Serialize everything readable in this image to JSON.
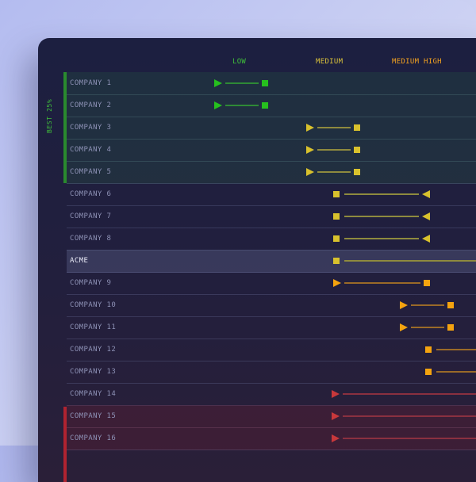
{
  "columns": {
    "low": "LOW",
    "medium": "MEDIUM",
    "medium_high": "MEDIUM HIGH"
  },
  "group_label": "BEST 25%",
  "colors": {
    "green": "#26c01e",
    "yellow": "#d8c12d",
    "orange": "#f4a30f",
    "red": "#c8383b",
    "best_bar": "#2a8a2e",
    "worst_bar": "#b02330"
  },
  "rows": [
    {
      "label": "COMPANY 1",
      "group": "best",
      "color": "green"
    },
    {
      "label": "COMPANY 2",
      "group": "best",
      "color": "green"
    },
    {
      "label": "COMPANY 3",
      "group": "best",
      "color": "yellow"
    },
    {
      "label": "COMPANY 4",
      "group": "best",
      "color": "yellow"
    },
    {
      "label": "COMPANY 5",
      "group": "best",
      "color": "yellow"
    },
    {
      "label": "COMPANY 6",
      "group": "",
      "color": "yellow"
    },
    {
      "label": "COMPANY 7",
      "group": "",
      "color": "yellow"
    },
    {
      "label": "COMPANY 8",
      "group": "",
      "color": "yellow"
    },
    {
      "label": "ACME",
      "group": "acme",
      "color": "yellow"
    },
    {
      "label": "COMPANY 9",
      "group": "",
      "color": "orange"
    },
    {
      "label": "COMPANY 10",
      "group": "",
      "color": "orange"
    },
    {
      "label": "COMPANY 11",
      "group": "",
      "color": "orange"
    },
    {
      "label": "COMPANY 12",
      "group": "",
      "color": "orange"
    },
    {
      "label": "COMPANY 13",
      "group": "",
      "color": "orange"
    },
    {
      "label": "COMPANY 14",
      "group": "",
      "color": "red"
    },
    {
      "label": "COMPANY 15",
      "group": "worst",
      "color": "red"
    },
    {
      "label": "COMPANY 16",
      "group": "worst",
      "color": "red"
    }
  ]
}
